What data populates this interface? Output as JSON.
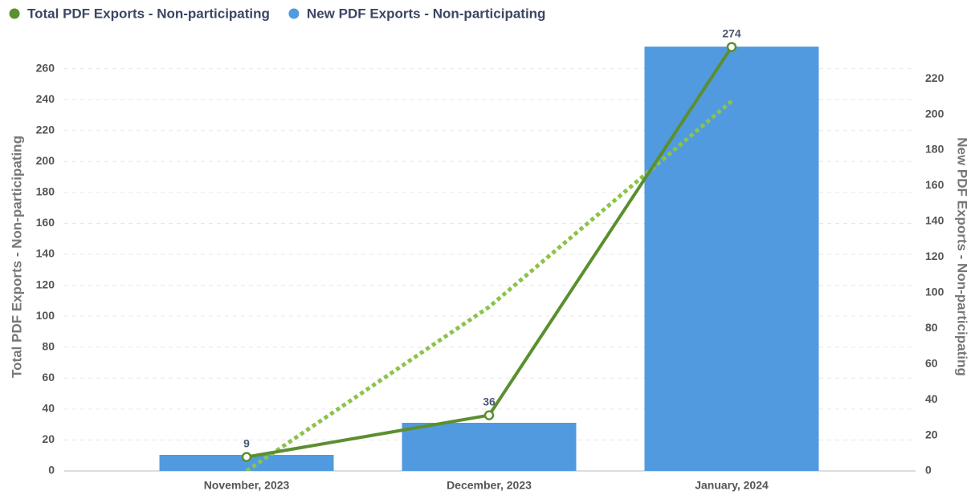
{
  "chart_data": {
    "type": "combo",
    "categories": [
      "November, 2023",
      "December, 2023",
      "January, 2024"
    ],
    "series": [
      {
        "name": "Total PDF Exports - Non-participating",
        "type": "line",
        "color": "#5b8f2f",
        "values": [
          9,
          36,
          274
        ],
        "data_labels": true
      },
      {
        "name": "New PDF Exports - Non-participating",
        "type": "bar",
        "axis": "y2",
        "color": "#519ae0",
        "values": [
          9,
          27,
          238
        ]
      }
    ],
    "trendline": {
      "color": "#8bc34a",
      "values": [
        -26,
        106,
        239
      ]
    },
    "ylabel": "Total PDF Exports - Non-participating",
    "y2label": "New PDF Exports - Non-participating",
    "ylim": [
      0,
      280
    ],
    "yticks": [
      0,
      20,
      40,
      60,
      80,
      100,
      120,
      140,
      160,
      180,
      200,
      220,
      240,
      260
    ],
    "y2lim": [
      0,
      243
    ],
    "y2ticks": [
      0,
      20,
      40,
      60,
      80,
      100,
      120,
      140,
      160,
      180,
      200,
      220
    ],
    "grid": true,
    "legend": "top-left"
  }
}
